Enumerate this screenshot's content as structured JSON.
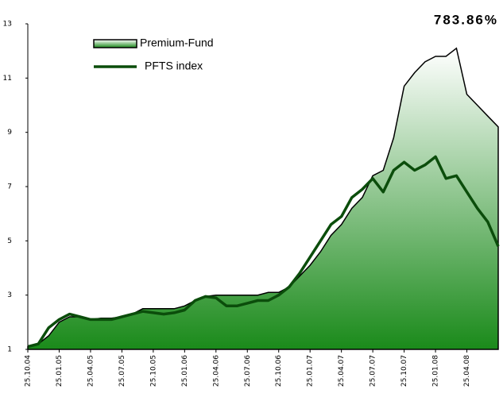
{
  "chart_data": {
    "type": "area-line",
    "annotation": "783.86%",
    "categories": [
      "25.10.04",
      null,
      null,
      "25.01.05",
      null,
      null,
      "25.04.05",
      null,
      null,
      "25.07.05",
      null,
      null,
      "25.10.05",
      null,
      null,
      "25.01.06",
      null,
      null,
      "25.04.06",
      null,
      null,
      "25.07.06",
      null,
      null,
      "25.10.06",
      null,
      null,
      "25.01.07",
      null,
      null,
      "25.04.07",
      null,
      null,
      "25.07.07",
      null,
      null,
      "25.10.07",
      null,
      null,
      "25.01.08",
      null,
      null,
      "25.04.08",
      null,
      null,
      null
    ],
    "series": [
      {
        "name": "Premium-Fund",
        "color": "#1a8a1a",
        "values": [
          1.1,
          1.2,
          1.5,
          2.0,
          2.2,
          2.2,
          2.1,
          2.15,
          2.15,
          2.2,
          2.3,
          2.5,
          2.5,
          2.5,
          2.5,
          2.6,
          2.8,
          2.95,
          3.0,
          3.0,
          3.0,
          3.0,
          3.0,
          3.1,
          3.1,
          3.3,
          3.7,
          4.1,
          4.6,
          5.2,
          5.6,
          6.2,
          6.6,
          7.4,
          7.6,
          8.8,
          10.7,
          11.2,
          11.6,
          11.8,
          11.8,
          12.1,
          10.4,
          10.0,
          9.6,
          9.2
        ]
      },
      {
        "name": "PFTS index",
        "color": "#0b4d0b",
        "values": [
          1.1,
          1.2,
          1.8,
          2.1,
          2.3,
          2.2,
          2.1,
          2.1,
          2.1,
          2.2,
          2.3,
          2.4,
          2.35,
          2.3,
          2.35,
          2.45,
          2.8,
          2.95,
          2.9,
          2.6,
          2.6,
          2.7,
          2.8,
          2.8,
          3.0,
          3.3,
          3.8,
          4.4,
          5.0,
          5.6,
          5.9,
          6.6,
          6.9,
          7.3,
          6.8,
          7.6,
          7.9,
          7.6,
          7.8,
          8.1,
          7.3,
          7.4,
          6.8,
          6.2,
          5.7,
          4.8
        ]
      }
    ],
    "ylim": [
      1,
      13
    ],
    "yticks": [
      1,
      3,
      5,
      7,
      9,
      11,
      13
    ],
    "grid": false
  }
}
